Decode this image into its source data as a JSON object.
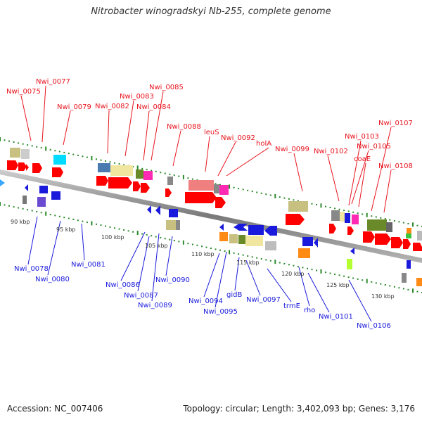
{
  "title": "Nitrobacter winogradskyi Nb-255, complete genome",
  "footer": {
    "accession": "Accession: NC_007406",
    "summary": "Topology: circular; Length: 3,402,093 bp; Genes: 3,176"
  },
  "colors": {
    "label_top": "#e8141e",
    "label_bottom": "#1a1adc",
    "backbone": "#8a8a8a",
    "tick": "#2a8a2a"
  },
  "kbp_labels": [
    "90 kbp",
    "95 kbp",
    "100 kbp",
    "105 kbp",
    "110 kbp",
    "115 kbp",
    "120 kbp",
    "125 kbp",
    "130 kbp"
  ],
  "top_labels": [
    "Nwi_0075",
    "Nwi_0077",
    "Nwi_0079",
    "Nwi_0082",
    "Nwi_0083",
    "Nwi_0084",
    "Nwi_0085",
    "Nwi_0088",
    "leuS",
    "Nwi_0092",
    "holA",
    "Nwi_0099",
    "Nwi_0102",
    "Nwi_0103",
    "coaE",
    "Nwi_0105",
    "Nwi_0107",
    "Nwi_0108"
  ],
  "bottom_labels": [
    "Nwi_0078",
    "Nwi_0080",
    "Nwi_0081",
    "Nwi_0086",
    "Nwi_0087",
    "Nwi_0089",
    "Nwi_0090",
    "Nwi_0094",
    "Nwi_0095",
    "gidB",
    "Nwi_0097",
    "trmE",
    "rho",
    "Nwi_0101",
    "Nwi_0106"
  ]
}
